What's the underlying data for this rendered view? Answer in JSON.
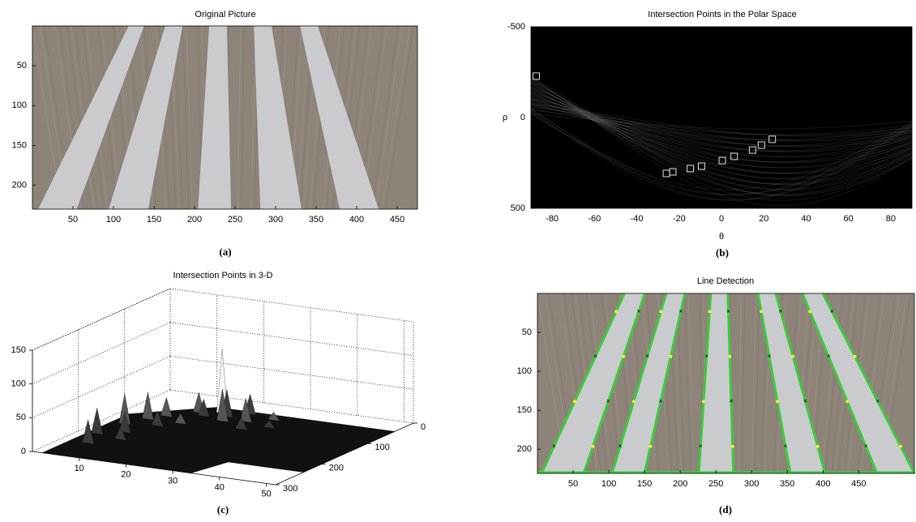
{
  "chart_data": [
    {
      "type": "image",
      "title": "Original Picture",
      "caption": "(a)",
      "xlim": [
        0,
        475
      ],
      "ylim": [
        230,
        0
      ],
      "xticks": [
        50,
        100,
        150,
        200,
        250,
        300,
        350,
        400,
        450
      ],
      "yticks": [
        50,
        100,
        150,
        200
      ]
    },
    {
      "type": "scatter",
      "title": "Intersection Points in the Polar Space",
      "caption": "(b)",
      "xlabel": "θ",
      "ylabel": "ρ",
      "x": [
        -87.5,
        -26,
        -23,
        -14.7,
        -9.4,
        0.4,
        6,
        14.7,
        18.9,
        24
      ],
      "values": [
        -228,
        308,
        299,
        281,
        268,
        237,
        214,
        179,
        152,
        120
      ],
      "color": "#e0e0e0",
      "xlim": [
        -90,
        90
      ],
      "ylim": [
        500,
        -500
      ],
      "xticks": [
        -80,
        -60,
        -40,
        -20,
        0,
        20,
        40,
        60,
        80
      ],
      "yticks": [
        -500,
        0,
        500
      ]
    },
    {
      "type": "surface",
      "title": "Intersection Points in 3-D",
      "caption": "(c)",
      "xlim": [
        0,
        52
      ],
      "ylim": [
        0,
        300
      ],
      "zlim": [
        0,
        150
      ],
      "xticks": [
        10,
        20,
        30,
        40,
        50
      ],
      "yticks": [
        0,
        100,
        200,
        300
      ],
      "zticks": [
        0,
        50,
        100,
        150
      ]
    },
    {
      "type": "image",
      "title": "Line Detection",
      "caption": "(d)",
      "xlim": [
        0,
        528
      ],
      "ylim": [
        231,
        0
      ],
      "xticks": [
        50,
        100,
        150,
        200,
        250,
        300,
        350,
        400,
        450
      ],
      "yticks": [
        50,
        100,
        150,
        200
      ]
    }
  ]
}
